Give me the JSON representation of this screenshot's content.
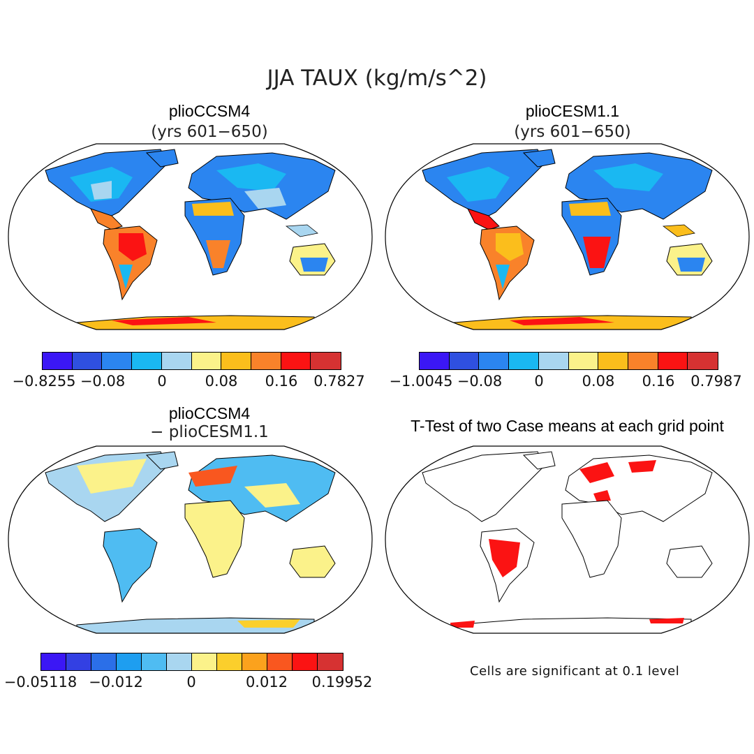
{
  "title": "JJA TAUX (kg/m/s^2)",
  "panels": {
    "p1": {
      "title": "plioCCSM4",
      "subtitle": "(yrs 601−650)"
    },
    "p2": {
      "title": "plioCESM1.1",
      "subtitle": "(yrs 601−650)"
    },
    "p3": {
      "title": "plioCCSM4",
      "subtitle": "− plioCESM1.1"
    },
    "p4": {
      "title": "T-Test of two Case means at each grid point"
    }
  },
  "colorbars": {
    "cb1": {
      "colors": [
        "#3b17f5",
        "#2f50e0",
        "#2b85f0",
        "#1ab8f2",
        "#a9d6f0",
        "#fbf28a",
        "#fbbe1c",
        "#f9822a",
        "#fb1313",
        "#d63232"
      ],
      "labels": [
        "−0.8255",
        "−0.08",
        "0",
        "0.08",
        "0.16",
        "0.7827"
      ]
    },
    "cb2": {
      "colors": [
        "#3b17f5",
        "#2f50e0",
        "#2b85f0",
        "#1ab8f2",
        "#a9d6f0",
        "#fbf28a",
        "#fbbe1c",
        "#f9822a",
        "#fb1313",
        "#d63232"
      ],
      "labels": [
        "−1.0045",
        "−0.08",
        "0",
        "0.08",
        "0.16",
        "0.7987"
      ]
    },
    "cb3": {
      "colors": [
        "#3b17f5",
        "#3340e3",
        "#2b6fe8",
        "#1e9ef0",
        "#4fbcf2",
        "#a9d6f0",
        "#fbf28a",
        "#fbcf2c",
        "#fba21d",
        "#f9571f",
        "#fb1313",
        "#d63232"
      ],
      "labels": [
        "−0.05118",
        "−0.012",
        "0",
        "0.012",
        "0.19952"
      ]
    }
  },
  "note": "Cells are significant at 0.1 level"
}
